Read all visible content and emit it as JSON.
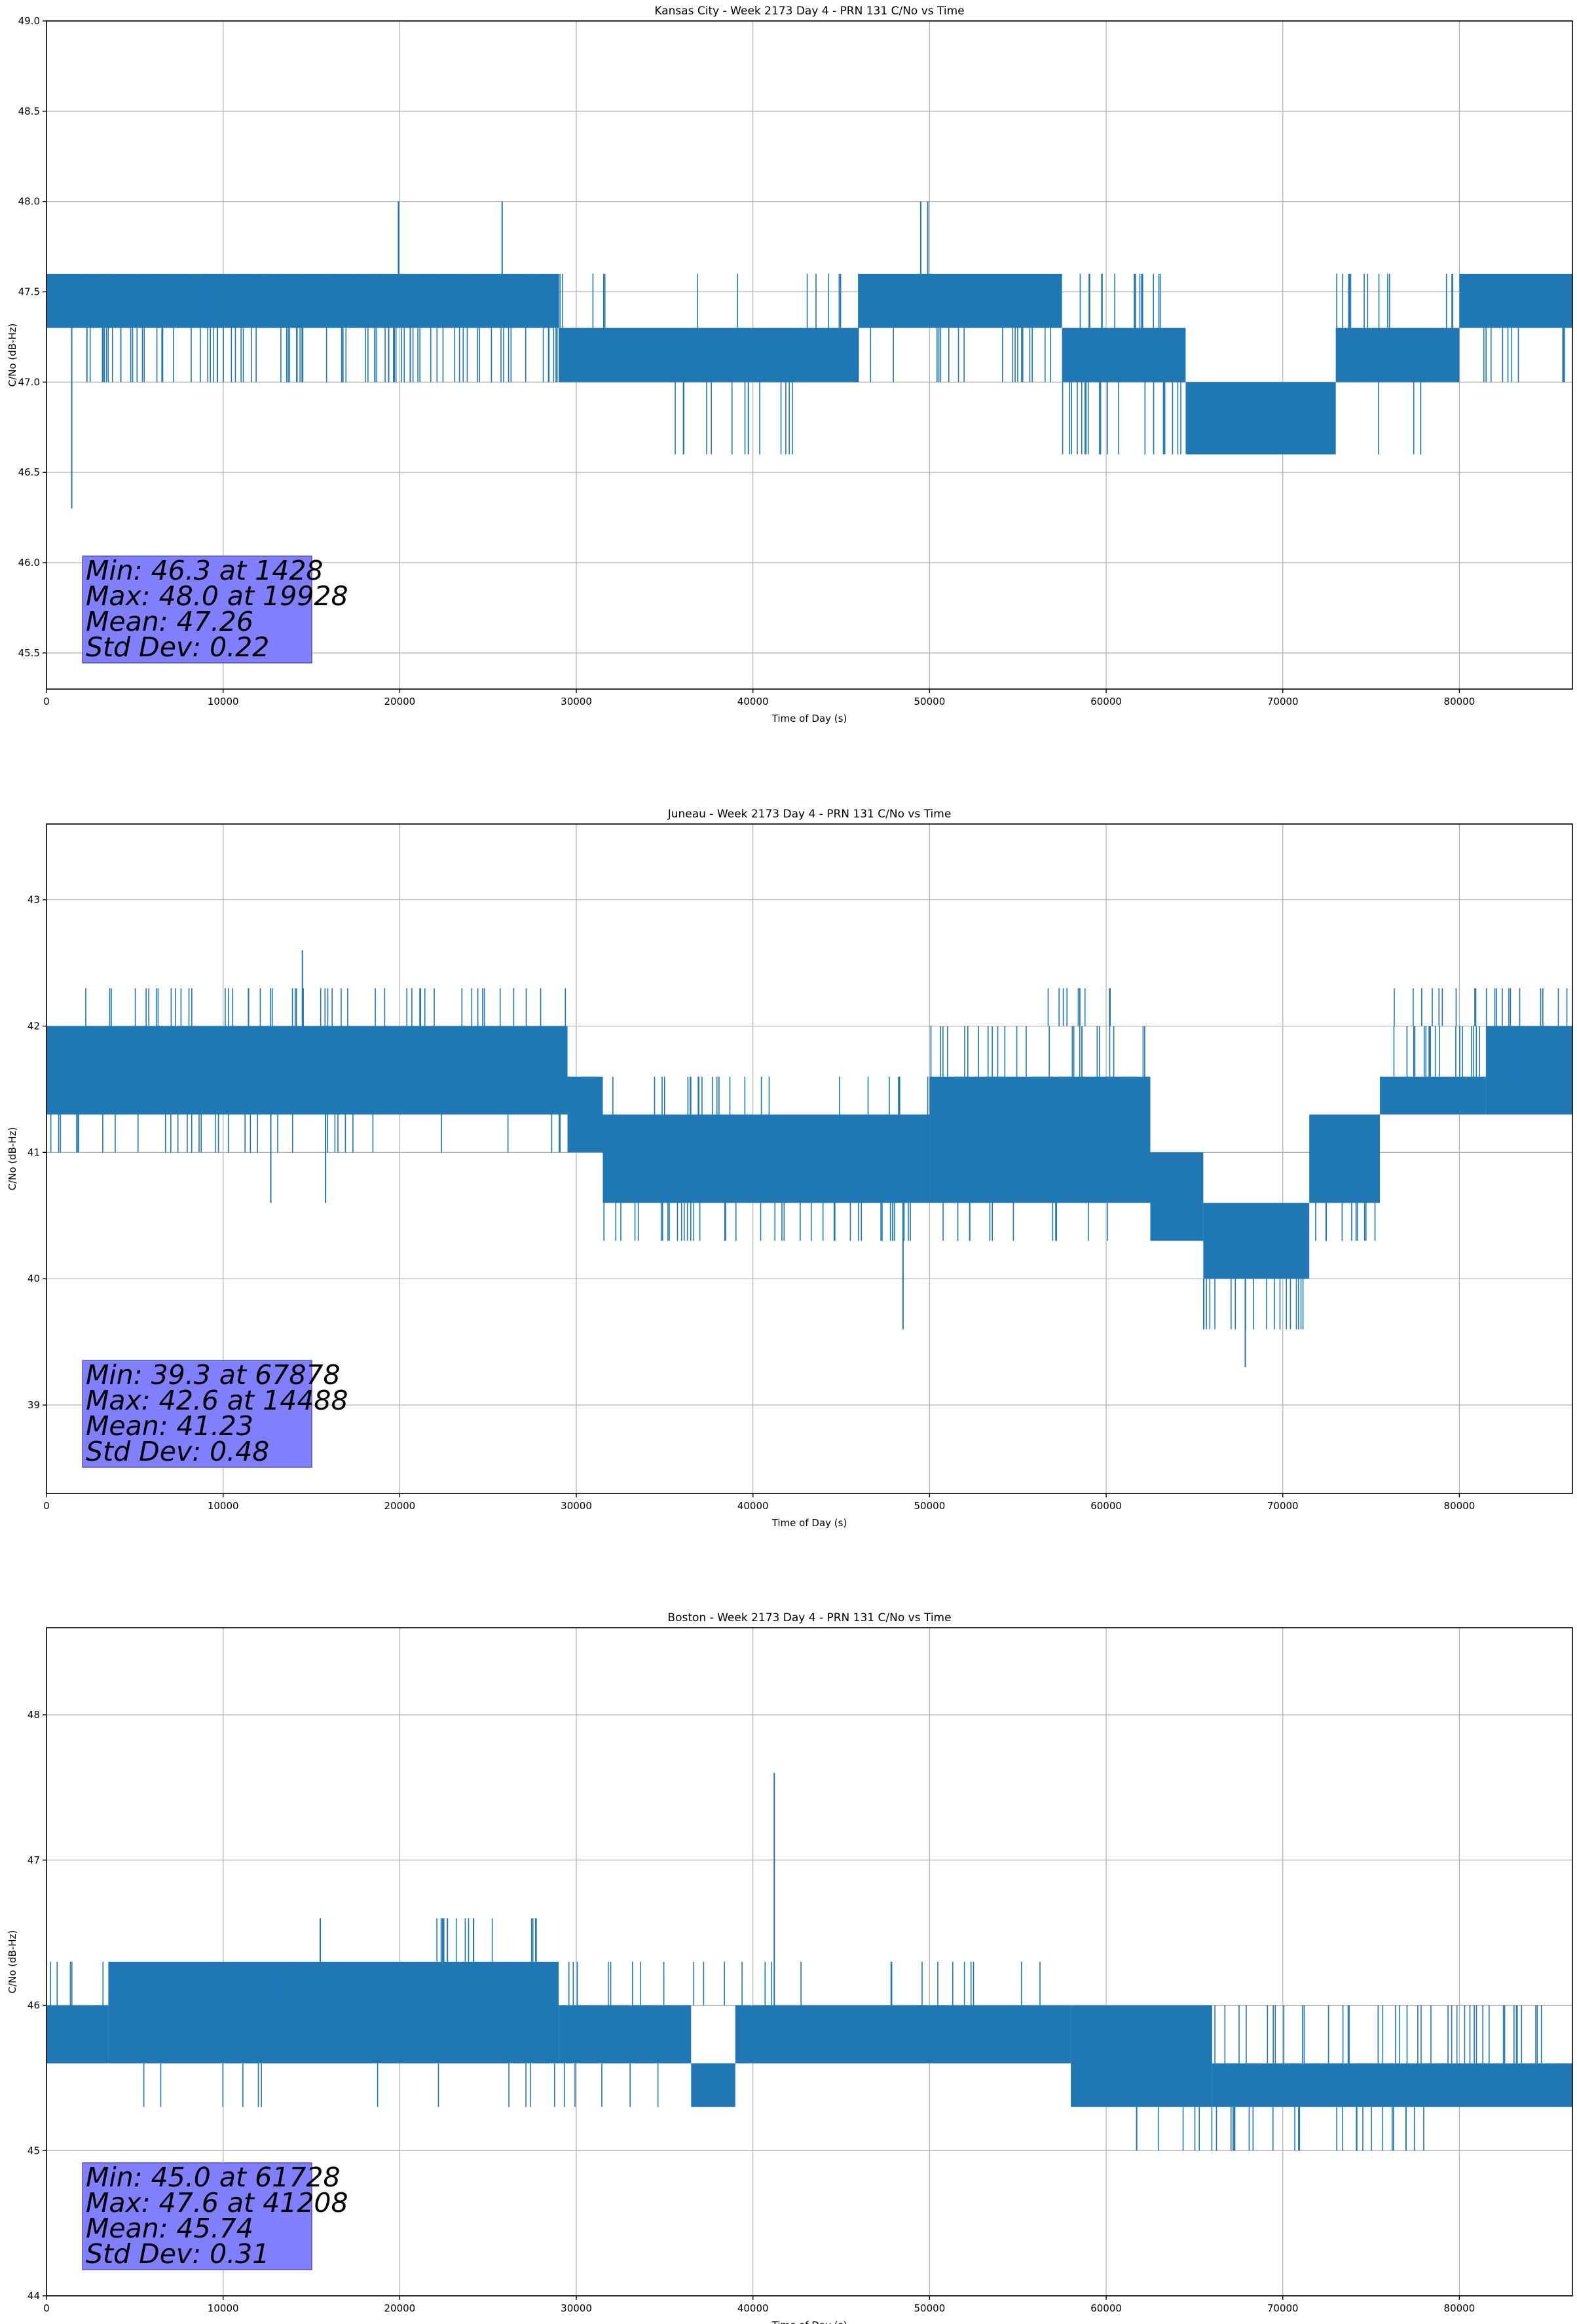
{
  "chart_data": [
    {
      "type": "line",
      "title": "Kansas City - Week 2173 Day 4 - PRN 131 C/No vs Time",
      "xlabel": "Time of Day (s)",
      "ylabel": "C/No (dB-Hz)",
      "xlim": [
        0,
        86400
      ],
      "ylim": [
        45.3,
        49.0
      ],
      "xticks": [
        0,
        10000,
        20000,
        30000,
        40000,
        50000,
        60000,
        70000,
        80000
      ],
      "yticks": [
        "45.5",
        "46.0",
        "46.5",
        "47.0",
        "47.5",
        "48.0",
        "48.5",
        "49.0"
      ],
      "grid": true,
      "series_color": "#1f77b4",
      "stats": [
        "Min: 46.3 at 1428",
        "Max: 48.0 at 19928",
        "Mean: 47.26",
        "Std Dev: 0.22"
      ],
      "bands": [
        {
          "x": [
            0,
            29000
          ],
          "low": 47.3,
          "high": 47.6
        },
        {
          "x": [
            29000,
            46000
          ],
          "low": 47.0,
          "high": 47.3
        },
        {
          "x": [
            46000,
            57500
          ],
          "low": 47.3,
          "high": 47.6
        },
        {
          "x": [
            57500,
            64500
          ],
          "low": 47.0,
          "high": 47.3
        },
        {
          "x": [
            64500,
            73000
          ],
          "low": 46.6,
          "high": 47.0
        },
        {
          "x": [
            73000,
            80000
          ],
          "low": 47.0,
          "high": 47.3
        },
        {
          "x": [
            80000,
            86400
          ],
          "low": 47.3,
          "high": 47.6
        }
      ],
      "spikes": [
        {
          "x": 1428,
          "y0": 47.3,
          "y1": 46.3
        },
        {
          "x": 19928,
          "y0": 47.6,
          "y1": 48.0
        },
        {
          "x": 25800,
          "y0": 47.6,
          "y1": 48.0
        },
        {
          "x": 49500,
          "y0": 47.6,
          "y1": 48.0
        },
        {
          "x": 49900,
          "y0": 47.6,
          "y1": 48.0
        }
      ],
      "flicker": [
        {
          "x": [
            1500,
            29000
          ],
          "y0": 47.3,
          "y1": 47.0,
          "n": 90
        },
        {
          "x": [
            2000,
            29000
          ],
          "y0": 47.6,
          "y1": 47.3,
          "n": 60
        },
        {
          "x": [
            29000,
            46000
          ],
          "y0": 47.0,
          "y1": 46.6,
          "n": 14
        },
        {
          "x": [
            29000,
            46000
          ],
          "y0": 47.3,
          "y1": 47.6,
          "n": 14
        },
        {
          "x": [
            46000,
            57500
          ],
          "y0": 47.3,
          "y1": 47.0,
          "n": 18
        },
        {
          "x": [
            57500,
            64500
          ],
          "y0": 47.3,
          "y1": 47.6,
          "n": 16
        },
        {
          "x": [
            57500,
            64500
          ],
          "y0": 47.0,
          "y1": 46.6,
          "n": 20
        },
        {
          "x": [
            73000,
            80000
          ],
          "y0": 47.3,
          "y1": 47.6,
          "n": 14
        },
        {
          "x": [
            73000,
            80000
          ],
          "y0": 47.0,
          "y1": 46.6,
          "n": 4
        },
        {
          "x": [
            80000,
            86400
          ],
          "y0": 47.3,
          "y1": 47.0,
          "n": 10
        }
      ]
    },
    {
      "type": "line",
      "title": "Juneau - Week 2173 Day 4 - PRN 131 C/No vs Time",
      "xlabel": "Time of Day (s)",
      "ylabel": "C/No (dB-Hz)",
      "xlim": [
        0,
        86400
      ],
      "ylim": [
        38.3,
        43.6
      ],
      "xticks": [
        0,
        10000,
        20000,
        30000,
        40000,
        50000,
        60000,
        70000,
        80000
      ],
      "yticks": [
        "39",
        "40",
        "41",
        "42",
        "43"
      ],
      "grid": true,
      "series_color": "#1f77b4",
      "stats": [
        "Min: 39.3 at 67878",
        "Max: 42.6 at 14488",
        "Mean: 41.23",
        "Std Dev: 0.48"
      ],
      "bands": [
        {
          "x": [
            0,
            29500
          ],
          "low": 41.3,
          "high": 42.0
        },
        {
          "x": [
            29500,
            31500
          ],
          "low": 41.0,
          "high": 41.6
        },
        {
          "x": [
            31500,
            50000
          ],
          "low": 40.6,
          "high": 41.3
        },
        {
          "x": [
            50000,
            62500
          ],
          "low": 40.6,
          "high": 41.6
        },
        {
          "x": [
            62500,
            65500
          ],
          "low": 40.3,
          "high": 41.0
        },
        {
          "x": [
            65500,
            71500
          ],
          "low": 40.0,
          "high": 40.6
        },
        {
          "x": [
            71500,
            75500
          ],
          "low": 40.6,
          "high": 41.3
        },
        {
          "x": [
            75500,
            81500
          ],
          "low": 41.3,
          "high": 41.6
        },
        {
          "x": [
            81500,
            86400
          ],
          "low": 41.3,
          "high": 42.0
        }
      ],
      "spikes": [
        {
          "x": 14488,
          "y0": 42.0,
          "y1": 42.6
        },
        {
          "x": 67878,
          "y0": 40.0,
          "y1": 39.3
        },
        {
          "x": 48500,
          "y0": 40.6,
          "y1": 39.6
        },
        {
          "x": 12700,
          "y0": 41.3,
          "y1": 40.6
        },
        {
          "x": 15800,
          "y0": 41.3,
          "y1": 40.6
        }
      ],
      "flicker": [
        {
          "x": [
            0,
            29500
          ],
          "y0": 42.0,
          "y1": 42.3,
          "n": 50
        },
        {
          "x": [
            0,
            29500
          ],
          "y0": 41.3,
          "y1": 41.0,
          "n": 35
        },
        {
          "x": [
            31500,
            50000
          ],
          "y0": 40.6,
          "y1": 40.3,
          "n": 40
        },
        {
          "x": [
            31500,
            50000
          ],
          "y0": 41.3,
          "y1": 41.6,
          "n": 25
        },
        {
          "x": [
            50000,
            62500
          ],
          "y0": 41.6,
          "y1": 42.0,
          "n": 25
        },
        {
          "x": [
            56500,
            60500
          ],
          "y0": 42.0,
          "y1": 42.3,
          "n": 10
        },
        {
          "x": [
            50000,
            62500
          ],
          "y0": 40.6,
          "y1": 40.3,
          "n": 12
        },
        {
          "x": [
            65500,
            71500
          ],
          "y0": 40.0,
          "y1": 39.6,
          "n": 18
        },
        {
          "x": [
            71500,
            75500
          ],
          "y0": 40.6,
          "y1": 40.3,
          "n": 10
        },
        {
          "x": [
            75500,
            86400
          ],
          "y0": 41.6,
          "y1": 42.0,
          "n": 30
        },
        {
          "x": [
            76000,
            86400
          ],
          "y0": 42.0,
          "y1": 42.3,
          "n": 20
        }
      ]
    },
    {
      "type": "line",
      "title": "Boston - Week 2173 Day 4 - PRN 131 C/No vs Time",
      "xlabel": "Time of Day (s)",
      "ylabel": "C/No (dB-Hz)",
      "xlim": [
        0,
        86400
      ],
      "ylim": [
        44.0,
        48.6
      ],
      "xticks": [
        0,
        10000,
        20000,
        30000,
        40000,
        50000,
        60000,
        70000,
        80000
      ],
      "yticks": [
        "44",
        "45",
        "46",
        "47",
        "48"
      ],
      "grid": true,
      "series_color": "#1f77b4",
      "stats": [
        "Min: 45.0 at 61728",
        "Max: 47.6 at 41208",
        "Mean: 45.74",
        "Std Dev: 0.31"
      ],
      "bands": [
        {
          "x": [
            0,
            3500
          ],
          "low": 45.6,
          "high": 46.0
        },
        {
          "x": [
            3500,
            29000
          ],
          "low": 45.6,
          "high": 46.3
        },
        {
          "x": [
            29000,
            36500
          ],
          "low": 45.6,
          "high": 46.0
        },
        {
          "x": [
            36500,
            39000
          ],
          "low": 45.3,
          "high": 45.6
        },
        {
          "x": [
            39000,
            58000
          ],
          "low": 45.6,
          "high": 46.0
        },
        {
          "x": [
            58000,
            66000
          ],
          "low": 45.3,
          "high": 46.0
        },
        {
          "x": [
            66000,
            86400
          ],
          "low": 45.3,
          "high": 45.6
        }
      ],
      "spikes": [
        {
          "x": 41208,
          "y0": 46.0,
          "y1": 47.6
        },
        {
          "x": 15500,
          "y0": 46.3,
          "y1": 46.6
        },
        {
          "x": 22700,
          "y0": 46.3,
          "y1": 46.6
        },
        {
          "x": 27700,
          "y0": 46.3,
          "y1": 46.6
        },
        {
          "x": 61728,
          "y0": 45.3,
          "y1": 45.0
        }
      ],
      "flicker": [
        {
          "x": [
            0,
            29000
          ],
          "y0": 46.0,
          "y1": 46.3,
          "n": 40
        },
        {
          "x": [
            3500,
            29000
          ],
          "y0": 45.6,
          "y1": 45.3,
          "n": 12
        },
        {
          "x": [
            22000,
            28000
          ],
          "y0": 46.3,
          "y1": 46.6,
          "n": 14
        },
        {
          "x": [
            29000,
            58000
          ],
          "y0": 46.0,
          "y1": 46.3,
          "n": 25
        },
        {
          "x": [
            29000,
            40000
          ],
          "y0": 45.6,
          "y1": 45.3,
          "n": 8
        },
        {
          "x": [
            66000,
            86400
          ],
          "y0": 45.6,
          "y1": 46.0,
          "n": 40
        },
        {
          "x": [
            62000,
            78000
          ],
          "y0": 45.3,
          "y1": 45.0,
          "n": 30
        }
      ]
    }
  ]
}
